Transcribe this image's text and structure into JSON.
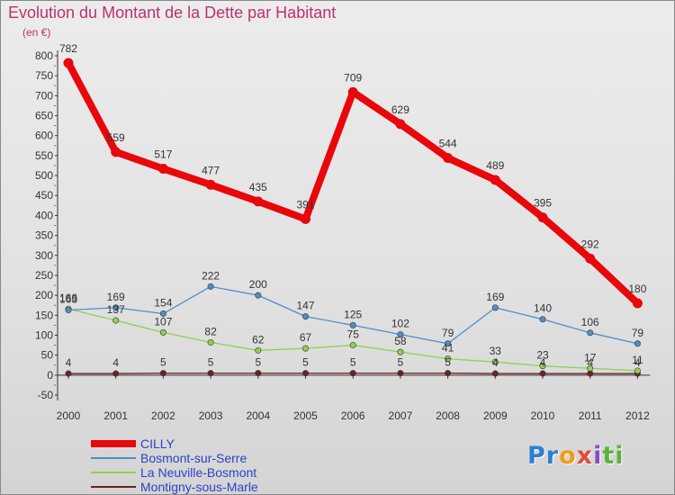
{
  "chart_data": {
    "type": "line",
    "title": "Evolution du Montant de la Dette par Habitant",
    "unit_label": "(en €)",
    "x": [
      "2000",
      "2001",
      "2002",
      "2003",
      "2004",
      "2005",
      "2006",
      "2007",
      "2008",
      "2009",
      "2010",
      "2011",
      "2012"
    ],
    "ylim": [
      -50,
      800
    ],
    "yticks": [
      -50,
      0,
      50,
      100,
      150,
      200,
      250,
      300,
      350,
      400,
      450,
      500,
      550,
      600,
      650,
      700,
      750,
      800
    ],
    "grid": false,
    "legend_position": "bottom-left",
    "series": [
      {
        "name": "CILLY",
        "color": "#e8080c",
        "width": 8,
        "values": [
          782,
          559,
          517,
          477,
          435,
          391,
          709,
          629,
          544,
          489,
          395,
          292,
          180
        ]
      },
      {
        "name": "Bosmont-sur-Serre",
        "color": "#4f8fc8",
        "width": 1.3,
        "values": [
          163,
          169,
          154,
          222,
          200,
          147,
          125,
          102,
          79,
          169,
          140,
          106,
          79
        ]
      },
      {
        "name": "La Neuville-Bosmont",
        "color": "#8ed04f",
        "width": 1.3,
        "values": [
          166,
          137,
          107,
          82,
          62,
          67,
          75,
          58,
          41,
          33,
          23,
          17,
          11
        ]
      },
      {
        "name": "Montigny-sous-Marle",
        "color": "#6b2326",
        "width": 1.3,
        "values": [
          4,
          4,
          5,
          5,
          5,
          5,
          5,
          5,
          5,
          4,
          4,
          4,
          4
        ]
      }
    ]
  },
  "logo": {
    "p1": "Pr",
    "p2": "o",
    "p3": "x",
    "p4": "i",
    "p5": "ti"
  }
}
